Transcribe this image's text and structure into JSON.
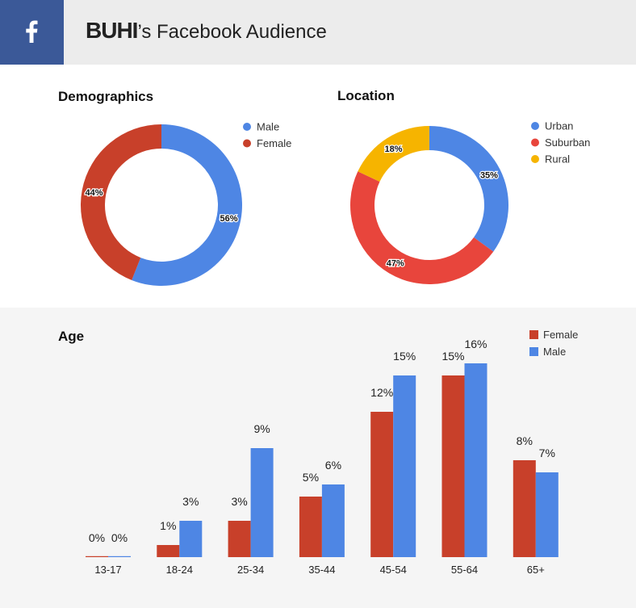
{
  "header": {
    "brand": "BUHI",
    "title_suffix": "’s Facebook Audience",
    "colors": {
      "bar": "#ececec",
      "icon_bg": "#3b5998"
    },
    "icon": "facebook-icon"
  },
  "chart_data": [
    {
      "type": "pie",
      "title": "Demographics",
      "donut": true,
      "slices": [
        {
          "label": "Male",
          "value": 56,
          "color": "#4e86e4"
        },
        {
          "label": "Female",
          "value": 44,
          "color": "#c8402a"
        }
      ],
      "legend": "right"
    },
    {
      "type": "pie",
      "title": "Location",
      "donut": true,
      "slices": [
        {
          "label": "Urban",
          "value": 35,
          "color": "#4e86e4"
        },
        {
          "label": "Suburban",
          "value": 47,
          "color": "#e8453c"
        },
        {
          "label": "Rural",
          "value": 18,
          "color": "#f6b400"
        }
      ],
      "legend": "right"
    },
    {
      "type": "bar",
      "title": "Age",
      "categories": [
        "13-17",
        "18-24",
        "25-34",
        "35-44",
        "45-54",
        "55-64",
        "65+"
      ],
      "series": [
        {
          "name": "Female",
          "values": [
            0,
            1,
            3,
            5,
            12,
            15,
            8
          ],
          "color": "#c8402a"
        },
        {
          "name": "Male",
          "values": [
            0,
            3,
            9,
            6,
            15,
            16,
            7
          ],
          "color": "#4e86e4"
        }
      ],
      "ylim": [
        0,
        16
      ],
      "legend": "top-right",
      "value_suffix": "%"
    }
  ]
}
